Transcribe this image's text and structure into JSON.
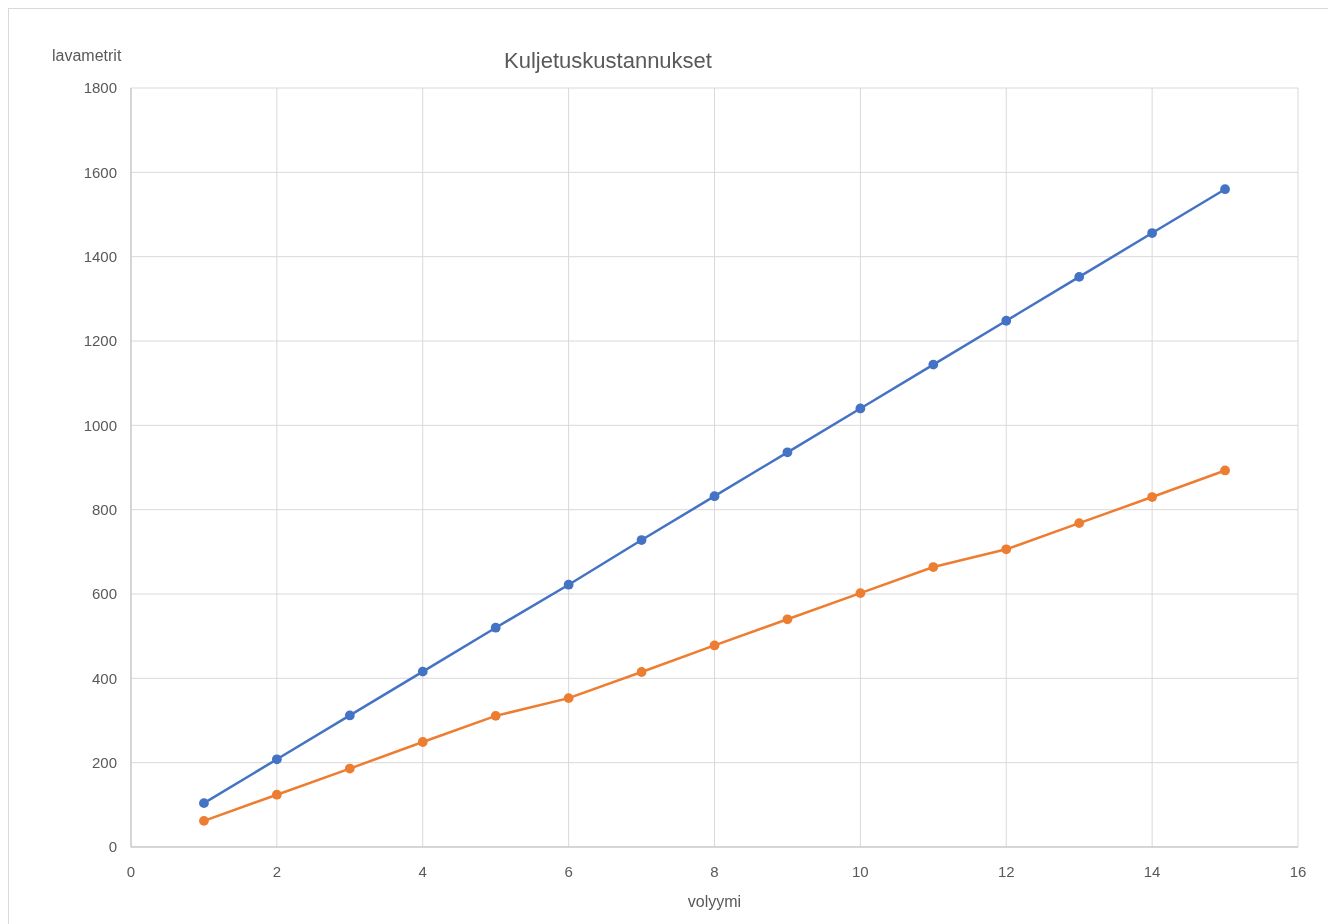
{
  "chart_data": {
    "type": "line",
    "title": "Kuljetuskustannukset",
    "xlabel": "volyymi",
    "ylabel": "lavametrit",
    "xlim": [
      0,
      16
    ],
    "xticks": [
      0,
      2,
      4,
      6,
      8,
      10,
      12,
      14,
      16
    ],
    "ylim": [
      0,
      1800
    ],
    "yticks": [
      0,
      200,
      400,
      600,
      800,
      1000,
      1200,
      1400,
      1600,
      1800
    ],
    "grid": true,
    "marker": "circle",
    "line_style": "solid",
    "x": [
      1,
      2,
      3,
      4,
      5,
      6,
      7,
      8,
      9,
      10,
      11,
      12,
      13,
      14,
      15
    ],
    "series": [
      {
        "color": "#4472c4",
        "values": [
          104,
          208,
          312,
          416,
          520,
          622,
          728,
          832,
          936,
          1040,
          1144,
          1248,
          1352,
          1456,
          1560
        ]
      },
      {
        "color": "#ed7d31",
        "values": [
          62,
          124,
          186,
          249,
          311,
          353,
          415,
          478,
          540,
          602,
          664,
          706,
          768,
          830,
          893
        ]
      }
    ]
  }
}
